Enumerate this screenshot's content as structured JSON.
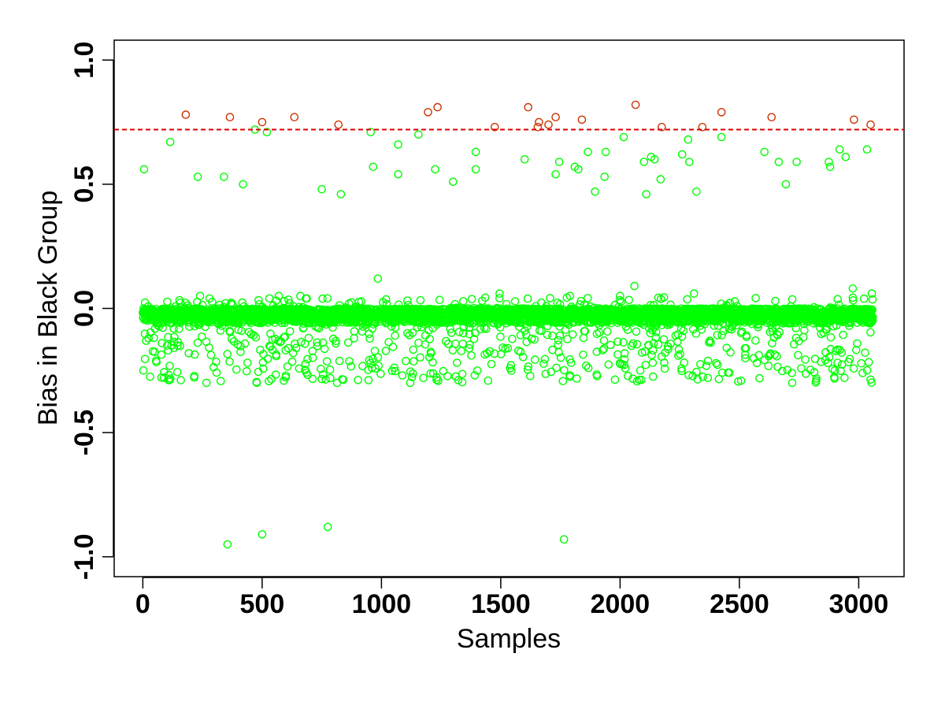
{
  "chart_data": {
    "type": "scatter",
    "title": "",
    "xlabel": "Samples",
    "ylabel": "Bias in Black Group",
    "xlim": [
      -120,
      3190
    ],
    "ylim": [
      -1.08,
      1.08
    ],
    "x_ticks": [
      0,
      500,
      1000,
      1500,
      2000,
      2500,
      3000
    ],
    "y_ticks": [
      -1.0,
      -0.5,
      0.0,
      0.5,
      1.0
    ],
    "x_tick_labels": [
      "0",
      "500",
      "1000",
      "1500",
      "2000",
      "2500",
      "3000"
    ],
    "y_tick_labels": [
      "-1.0",
      "-0.5",
      "0.0",
      "0.5",
      "1.0"
    ],
    "grid": false,
    "legend": "none",
    "threshold": {
      "y": 0.72,
      "color": "#dd0000",
      "style": "dashed"
    },
    "colors": {
      "normal": "#00ff00",
      "outlier": "#cc3300"
    },
    "n_samples": 3060,
    "dense_band": [
      -0.06,
      0.0
    ],
    "outlier_points": [
      [
        180,
        0.78
      ],
      [
        365,
        0.77
      ],
      [
        500,
        0.75
      ],
      [
        635,
        0.77
      ],
      [
        820,
        0.74
      ],
      [
        1195,
        0.79
      ],
      [
        1235,
        0.81
      ],
      [
        1475,
        0.73
      ],
      [
        1615,
        0.81
      ],
      [
        1655,
        0.73
      ],
      [
        1660,
        0.75
      ],
      [
        1700,
        0.74
      ],
      [
        1730,
        0.77
      ],
      [
        1840,
        0.76
      ],
      [
        2065,
        0.82
      ],
      [
        2175,
        0.73
      ],
      [
        2345,
        0.73
      ],
      [
        2425,
        0.79
      ],
      [
        2635,
        0.77
      ],
      [
        2980,
        0.76
      ],
      [
        3050,
        0.74
      ]
    ],
    "normal_points": [
      [
        5,
        0.56
      ],
      [
        115,
        0.67
      ],
      [
        230,
        0.53
      ],
      [
        340,
        0.53
      ],
      [
        420,
        0.5
      ],
      [
        470,
        0.72
      ],
      [
        520,
        0.71
      ],
      [
        750,
        0.48
      ],
      [
        830,
        0.46
      ],
      [
        955,
        0.71
      ],
      [
        965,
        0.57
      ],
      [
        1070,
        0.66
      ],
      [
        1070,
        0.54
      ],
      [
        1155,
        0.7
      ],
      [
        1225,
        0.56
      ],
      [
        1300,
        0.51
      ],
      [
        1395,
        0.63
      ],
      [
        1395,
        0.56
      ],
      [
        1600,
        0.6
      ],
      [
        1730,
        0.54
      ],
      [
        1745,
        0.59
      ],
      [
        1810,
        0.57
      ],
      [
        1825,
        0.56
      ],
      [
        1865,
        0.63
      ],
      [
        1895,
        0.47
      ],
      [
        1935,
        0.53
      ],
      [
        1940,
        0.63
      ],
      [
        2015,
        0.69
      ],
      [
        2100,
        0.59
      ],
      [
        2110,
        0.46
      ],
      [
        2130,
        0.61
      ],
      [
        2145,
        0.6
      ],
      [
        2170,
        0.52
      ],
      [
        2260,
        0.62
      ],
      [
        2285,
        0.68
      ],
      [
        2290,
        0.59
      ],
      [
        2320,
        0.47
      ],
      [
        2425,
        0.69
      ],
      [
        2605,
        0.63
      ],
      [
        2665,
        0.59
      ],
      [
        2695,
        0.5
      ],
      [
        2740,
        0.59
      ],
      [
        2875,
        0.59
      ],
      [
        2880,
        0.57
      ],
      [
        2920,
        0.64
      ],
      [
        2945,
        0.61
      ],
      [
        3035,
        0.64
      ],
      [
        985,
        0.12
      ],
      [
        2060,
        0.09
      ],
      [
        2975,
        0.08
      ],
      [
        1495,
        0.06
      ],
      [
        2310,
        0.06
      ],
      [
        3055,
        0.06
      ],
      [
        240,
        0.05
      ],
      [
        570,
        0.05
      ],
      [
        660,
        0.05
      ],
      [
        1790,
        0.05
      ],
      [
        2000,
        0.05
      ],
      [
        355,
        -0.95
      ],
      [
        500,
        -0.91
      ],
      [
        775,
        -0.88
      ],
      [
        1765,
        -0.93
      ]
    ]
  }
}
